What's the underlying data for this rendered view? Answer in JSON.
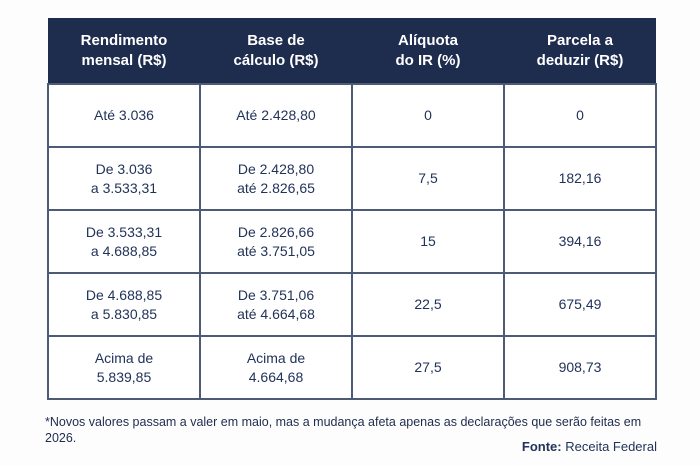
{
  "colors": {
    "header_bg": "#1e2c4e",
    "header_text": "#ffffff",
    "body_text": "#22335a",
    "border": "#4e5b76",
    "page_bg": "#fdfdfd"
  },
  "table": {
    "headers": [
      "Rendimento\nmensal (R$)",
      "Base de\ncálculo (R$)",
      "Alíquota\ndo IR (%)",
      "Parcela a\ndeduzir (R$)"
    ],
    "rows": [
      [
        "Até 3.036",
        "Até 2.428,80",
        "0",
        "0"
      ],
      [
        "De 3.036\na 3.533,31",
        "De 2.428,80\naté 2.826,65",
        "7,5",
        "182,16"
      ],
      [
        "De 3.533,31\na 4.688,85",
        "De 2.826,66\naté 3.751,05",
        "15",
        "394,16"
      ],
      [
        "De 4.688,85\na 5.830,85",
        "De 3.751,06\naté 4.664,68",
        "22,5",
        "675,49"
      ],
      [
        "Acima de\n5.839,85",
        "Acima de\n4.664,68",
        "27,5",
        "908,73"
      ]
    ]
  },
  "page": {
    "footnote": "*Novos valores passam a valer em maio, mas a mudança afeta apenas as declarações que serão feitas em 2026.",
    "source": {
      "label": "Fonte:",
      "value": "Receita Federal"
    }
  },
  "chart_data": {
    "type": "table",
    "title": "",
    "columns": [
      "Rendimento mensal (R$)",
      "Base de cálculo (R$)",
      "Alíquota do IR (%)",
      "Parcela a deduzir (R$)"
    ],
    "rows": [
      [
        "Até 3.036",
        "Até 2.428,80",
        "0",
        "0"
      ],
      [
        "De 3.036 a 3.533,31",
        "De 2.428,80 até 2.826,65",
        "7,5",
        "182,16"
      ],
      [
        "De 3.533,31 a 4.688,85",
        "De 2.826,66 até 3.751,05",
        "15",
        "394,16"
      ],
      [
        "De 4.688,85 a 5.830,85",
        "De 3.751,06 até 4.664,68",
        "22,5",
        "675,49"
      ],
      [
        "Acima de 5.839,85",
        "Acima de 4.664,68",
        "27,5",
        "908,73"
      ]
    ],
    "aliquota_values_pct": [
      0,
      7.5,
      15,
      22.5,
      27.5
    ],
    "parcela_deduzir_values": [
      0,
      182.16,
      394.16,
      675.49,
      908.73
    ],
    "footnote": "*Novos valores passam a valer em maio, mas a mudança afeta apenas as declarações que serão feitas em 2026.",
    "source": "Fonte: Receita Federal"
  }
}
